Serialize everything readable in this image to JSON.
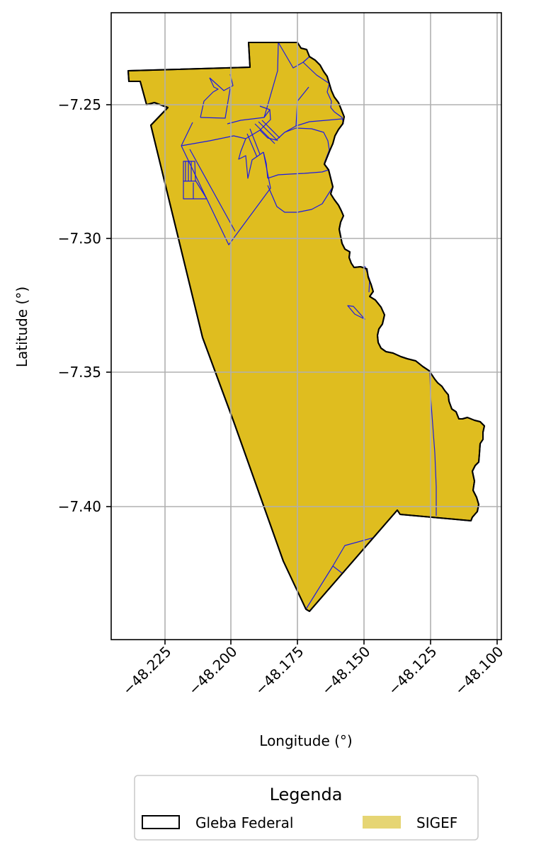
{
  "chart_data": {
    "type": "map",
    "xlabel": "Longitude (°)",
    "ylabel": "Latitude (°)",
    "x_ticks": [
      "−48.225",
      "−48.200",
      "−48.175",
      "−48.150",
      "−48.125",
      "−48.100"
    ],
    "y_ticks": [
      "−7.25",
      "−7.30",
      "−7.35",
      "−7.40"
    ],
    "grid": true,
    "legend": {
      "title": "Legenda",
      "placement": "bottom-center",
      "entries": [
        {
          "label": "Gleba Federal",
          "style": "outline",
          "color": "#000000"
        },
        {
          "label": "SIGEF",
          "style": "fill",
          "color": "#e6d574"
        }
      ]
    },
    "colors": {
      "fill": "#dfbd1f",
      "outline": "#000000",
      "parcels": "#1a1ae6",
      "grid": "#b0b0b0"
    }
  }
}
